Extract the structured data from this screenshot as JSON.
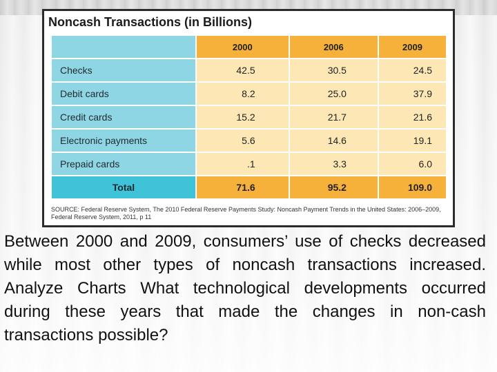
{
  "table": {
    "title": "Noncash Transactions (in Billions)",
    "years": [
      "2000",
      "2006",
      "2009"
    ],
    "rows": [
      {
        "label": "Checks",
        "values": [
          "42.5",
          "30.5",
          "24.5"
        ]
      },
      {
        "label": "Debit cards",
        "values": [
          "8.2",
          "25.0",
          "37.9"
        ]
      },
      {
        "label": "Credit cards",
        "values": [
          "15.2",
          "21.7",
          "21.6"
        ]
      },
      {
        "label": "Electronic payments",
        "values": [
          "5.6",
          "14.6",
          "19.1"
        ]
      },
      {
        "label": "Prepaid cards",
        "values": [
          ".1",
          "3.3",
          "6.0"
        ]
      }
    ],
    "total": {
      "label": "Total",
      "values": [
        "71.6",
        "95.2",
        "109.0"
      ]
    },
    "source": "SOURCE: Federal Reserve System, The 2010 Federal Reserve Payments Study: Noncash Payment Trends in the United States: 2006–2009, Federal Reserve System, 2011, p 11"
  },
  "question": "Between 2000 and 2009, consumers’ use of checks decreased while most other types of noncash transactions increased. Analyze Charts What technological developments occurred during these years that made the changes in non-cash transactions possible?",
  "colors": {
    "header_orange": "#f6b13a",
    "label_blue": "#8fd6e4",
    "total_blue": "#3fc3d9",
    "cell_cream": "#fce7b5"
  }
}
